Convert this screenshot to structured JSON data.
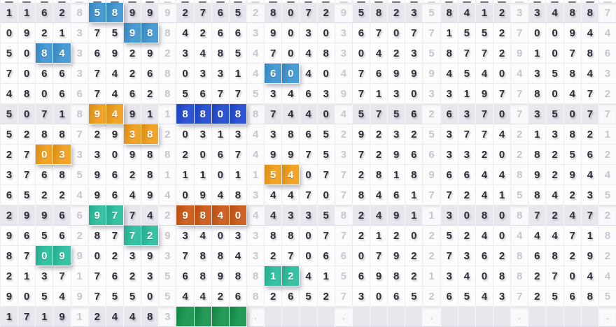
{
  "table": {
    "kind": "lottery-number-trend-grid",
    "column_count": 35,
    "row_count": 16,
    "separator_columns": [
      4,
      9,
      14,
      19,
      24,
      29,
      34
    ],
    "shaded_row_indices": [
      0,
      5,
      10,
      15
    ],
    "empty_char": "-",
    "dot_char": ".",
    "rows": [
      "11628589992765280729582358412334887",
      "09213759884266390303670771552700944",
      "50843692923485470483042358772910786",
      "70663742680331460404769994540435843",
      "48066746285677534639713033197780472",
      "50718949118808874404575626370735077",
      "52887293820313438652923253774213821",
      "27033309882067499753729663320282562",
      "37685962811101154077281896644892944",
      "65224964940948344707846177241584235",
      "29966977429840443358249113080872472",
      "96562877293403388077212025240444718",
      "87099023937884327066079227362868292",
      "21371762356898812415698213408827044",
      "90549755054426826527306526543725685",
      "1719124483----.----.----.----.----."
    ],
    "highlights": [
      {
        "row": 0,
        "cols": [
          5,
          6
        ],
        "color_key": "blue"
      },
      {
        "row": 1,
        "cols": [
          7,
          8
        ],
        "color_key": "blue"
      },
      {
        "row": 2,
        "cols": [
          2,
          3
        ],
        "color_key": "blue"
      },
      {
        "row": 3,
        "cols": [
          15,
          16
        ],
        "color_key": "blue"
      },
      {
        "row": 5,
        "cols": [
          5,
          6
        ],
        "color_key": "orange"
      },
      {
        "row": 5,
        "cols": [
          10,
          11,
          12,
          13
        ],
        "color_key": "dark_blue"
      },
      {
        "row": 6,
        "cols": [
          7,
          8
        ],
        "color_key": "orange"
      },
      {
        "row": 7,
        "cols": [
          2,
          3
        ],
        "color_key": "orange"
      },
      {
        "row": 8,
        "cols": [
          15,
          16
        ],
        "color_key": "orange"
      },
      {
        "row": 10,
        "cols": [
          5,
          6
        ],
        "color_key": "teal"
      },
      {
        "row": 10,
        "cols": [
          10,
          11,
          12,
          13
        ],
        "color_key": "dark_orange"
      },
      {
        "row": 11,
        "cols": [
          7,
          8
        ],
        "color_key": "teal"
      },
      {
        "row": 12,
        "cols": [
          2,
          3
        ],
        "color_key": "teal"
      },
      {
        "row": 13,
        "cols": [
          15,
          16
        ],
        "color_key": "teal"
      },
      {
        "row": 15,
        "cols": [
          10,
          11,
          12,
          13
        ],
        "color_key": "green"
      }
    ],
    "colors": {
      "blue": "#3b94d1",
      "dark_blue": "#1e47d0",
      "orange": "#f09c16",
      "dark_orange": "#cb5511",
      "teal": "#26bd9b",
      "green": "#129349",
      "shaded_row_bg": "#e9e6ee",
      "cell_bg": "#fdfdfe",
      "digit_color": "#2d2d35",
      "separator_digit_color": "#c9c5d0",
      "dot_color": "#c9c0c8"
    }
  }
}
